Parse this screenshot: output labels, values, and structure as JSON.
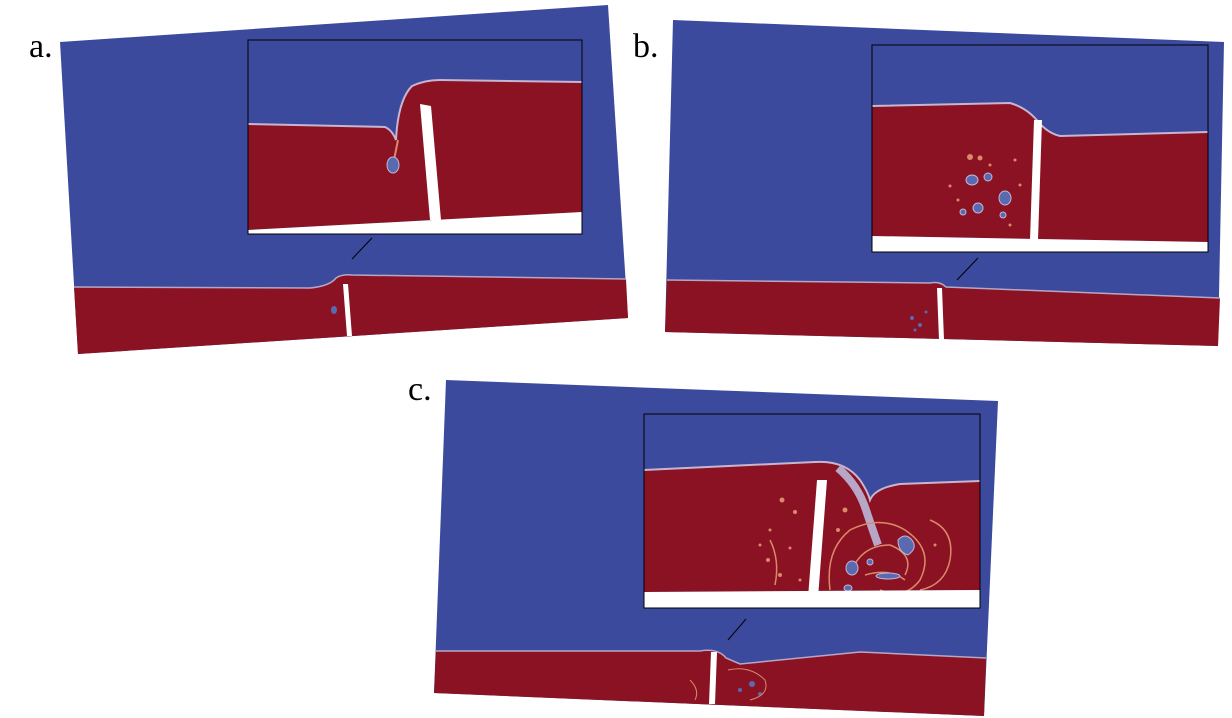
{
  "figure": {
    "panels": [
      {
        "id": "a",
        "label": "a."
      },
      {
        "id": "b",
        "label": "b."
      },
      {
        "id": "c",
        "label": "c."
      }
    ],
    "colors": {
      "air": "#3b4a9c",
      "water": "#8b1222",
      "gate": "#ffffff",
      "interface": "#b8a6c6",
      "mixing": "#d98a6a",
      "frame": "#000000"
    }
  }
}
